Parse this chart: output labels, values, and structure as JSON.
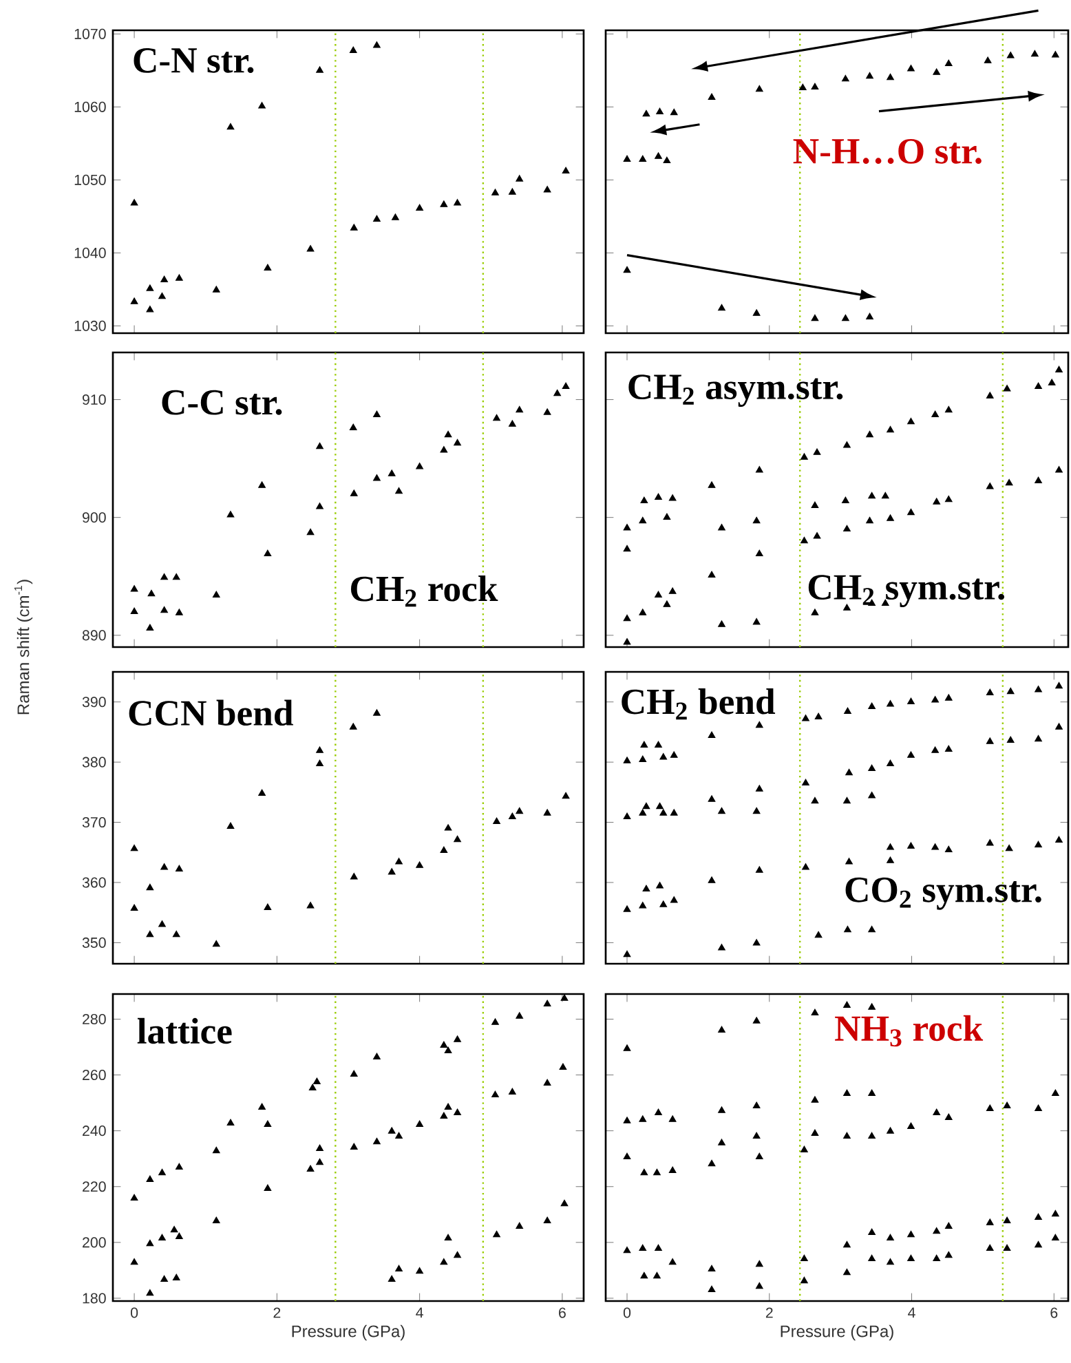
{
  "chart_data": [
    {
      "type": "scatter",
      "title": "C-N str.",
      "color": "#000000",
      "marker": "triangle",
      "tick_labels": "y",
      "xlim": [
        -0.3,
        6.3
      ],
      "ylim": [
        1029,
        1070.5
      ],
      "xticks": [
        0,
        2,
        4,
        6
      ],
      "yticks": [
        1030,
        1040,
        1050,
        1060,
        1070
      ],
      "ref_lines": [
        {
          "axis": "x",
          "value": 2.82,
          "color": "#99cc00",
          "line_style": "dotted"
        },
        {
          "axis": "x",
          "value": 4.89,
          "color": "#99cc00",
          "line_style": "dotted"
        }
      ],
      "x": [
        0,
        0,
        0.22,
        0.22,
        0.39,
        0.42,
        0.63,
        1.15,
        1.35,
        1.79,
        1.87,
        2.47,
        2.6,
        3.08,
        3.07,
        3.4,
        3.4,
        3.66,
        4.0,
        4.34,
        4.53,
        5.06,
        5.3,
        5.4,
        5.79,
        6.05
      ],
      "values": [
        1046.8,
        1033.3,
        1032.2,
        1035.1,
        1034.0,
        1036.3,
        1036.5,
        1034.9,
        1057.2,
        1060.1,
        1037.9,
        1040.5,
        1065.0,
        1043.4,
        1067.7,
        1068.4,
        1044.6,
        1044.8,
        1046.1,
        1046.6,
        1046.8,
        1048.2,
        1048.3,
        1050.1,
        1048.6,
        1051.2
      ]
    },
    {
      "type": "scatter",
      "title": "N-H…O str.",
      "color": "#000000",
      "marker": "triangle",
      "tick_labels": false,
      "xlim": [
        -0.3,
        6.2
      ],
      "ylim": [
        1029,
        1070.5
      ],
      "xticks": [
        0,
        2,
        4,
        6
      ],
      "yticks": [
        1030,
        1040,
        1050,
        1060,
        1070
      ],
      "ref_lines": [
        {
          "axis": "x",
          "value": 2.43,
          "color": "#99cc00",
          "line_style": "dotted"
        },
        {
          "axis": "x",
          "value": 5.28,
          "color": "#99cc00",
          "line_style": "dotted"
        }
      ],
      "x": [
        0,
        0,
        0.22,
        0.44,
        0.56,
        0.27,
        0.46,
        0.66,
        1.19,
        1.33,
        1.82,
        1.86,
        2.47,
        2.64,
        2.64,
        3.07,
        3.07,
        3.41,
        3.41,
        3.7,
        3.99,
        4.35,
        4.52,
        5.07,
        5.39,
        5.73,
        6.02
      ],
      "values": [
        1037.6,
        1052.8,
        1052.8,
        1053.2,
        1052.6,
        1059.0,
        1059.3,
        1059.2,
        1061.3,
        1032.4,
        1031.7,
        1062.4,
        1062.6,
        1062.7,
        1031.0,
        1031.0,
        1063.8,
        1064.2,
        1031.2,
        1064.0,
        1065.2,
        1064.7,
        1065.9,
        1066.3,
        1067.0,
        1067.2,
        1067.1
      ]
    },
    {
      "type": "scatter",
      "title": "C-C str.",
      "ylabel": "Raman shift (cm$^{-1}$)",
      "color": "#000000",
      "marker": "triangle",
      "tick_labels": "y",
      "xlim": [
        -0.3,
        6.3
      ],
      "ylim": [
        889,
        914
      ],
      "xticks": [
        0,
        2,
        4,
        6
      ],
      "yticks": [
        890,
        900,
        910
      ],
      "annotations": [
        "CH$_{2}$ rock"
      ],
      "ref_lines": [
        {
          "axis": "x",
          "value": 2.82,
          "color": "#99cc00",
          "line_style": "dotted"
        },
        {
          "axis": "x",
          "value": 4.89,
          "color": "#99cc00",
          "line_style": "dotted"
        }
      ],
      "x": [
        0,
        0,
        0.22,
        0.24,
        0.42,
        0.42,
        0.63,
        0.59,
        1.15,
        1.35,
        1.79,
        1.87,
        2.47,
        2.6,
        2.6,
        3.08,
        3.07,
        3.4,
        3.4,
        3.61,
        3.71,
        4.0,
        4.34,
        4.4,
        4.53,
        5.08,
        5.3,
        5.4,
        5.79,
        5.93,
        6.05
      ],
      "values": [
        893.9,
        892.0,
        890.6,
        893.5,
        892.1,
        894.9,
        891.9,
        894.9,
        893.4,
        900.2,
        902.7,
        896.9,
        898.7,
        906.0,
        900.9,
        902.0,
        907.6,
        908.7,
        903.3,
        903.7,
        902.2,
        904.3,
        905.7,
        907.0,
        906.3,
        908.4,
        907.9,
        909.1,
        908.9,
        910.5,
        911.1
      ]
    },
    {
      "type": "scatter",
      "title": "CH$_{2}$ asym.str.",
      "color": "#000000",
      "marker": "triangle",
      "tick_labels": false,
      "xlim": [
        -0.3,
        6.2
      ],
      "ylim": [
        889,
        914
      ],
      "xticks": [
        0,
        2,
        4,
        6
      ],
      "yticks": [
        890,
        900,
        910
      ],
      "annotations": [
        "CH$_{2}$ sym.str."
      ],
      "ref_lines": [
        {
          "axis": "x",
          "value": 2.43,
          "color": "#99cc00",
          "line_style": "dotted"
        },
        {
          "axis": "x",
          "value": 5.28,
          "color": "#99cc00",
          "line_style": "dotted"
        }
      ],
      "x": [
        0,
        0,
        0,
        0,
        0.22,
        0.24,
        0.44,
        0.44,
        0.56,
        0.64,
        0.22,
        0.56,
        0.64,
        1.19,
        1.19,
        1.33,
        1.33,
        1.82,
        1.86,
        1.86,
        1.82,
        2.49,
        2.67,
        2.49,
        2.67,
        2.64,
        2.64,
        3.09,
        3.09,
        3.07,
        3.09,
        3.41,
        3.7,
        3.44,
        3.63,
        3.44,
        3.63,
        3.7,
        3.41,
        3.99,
        3.99,
        4.33,
        4.52,
        4.35,
        4.52,
        5.1,
        5.34,
        5.1,
        5.37,
        5.78,
        5.97,
        6.07,
        5.78,
        6.07
      ],
      "values": [
        897.3,
        899.1,
        891.4,
        889.4,
        899.7,
        901.4,
        901.7,
        893.4,
        900.0,
        901.6,
        891.9,
        892.6,
        893.7,
        902.7,
        895.1,
        899.1,
        890.9,
        899.7,
        904.0,
        896.9,
        891.1,
        905.1,
        905.5,
        898.0,
        898.4,
        901.0,
        891.9,
        906.1,
        899.0,
        901.4,
        892.3,
        907.0,
        907.4,
        901.8,
        901.8,
        892.7,
        892.7,
        899.9,
        899.7,
        908.1,
        900.4,
        908.7,
        909.1,
        901.3,
        901.5,
        910.3,
        910.9,
        902.6,
        902.9,
        911.1,
        911.4,
        912.5,
        903.1,
        904.0
      ]
    },
    {
      "type": "scatter",
      "title": "CCN bend",
      "color": "#000000",
      "marker": "triangle",
      "tick_labels": "y",
      "xlim": [
        -0.3,
        6.3
      ],
      "ylim": [
        346.5,
        395
      ],
      "xticks": [
        0,
        2,
        4,
        6
      ],
      "yticks": [
        350,
        360,
        370,
        380,
        390
      ],
      "ref_lines": [
        {
          "axis": "x",
          "value": 2.82,
          "color": "#99cc00",
          "line_style": "dotted"
        },
        {
          "axis": "x",
          "value": 4.89,
          "color": "#99cc00",
          "line_style": "dotted"
        }
      ],
      "x": [
        0,
        0,
        0.22,
        0.22,
        0.39,
        0.42,
        0.59,
        0.63,
        1.15,
        1.35,
        1.79,
        1.87,
        2.47,
        2.6,
        2.6,
        3.07,
        3.08,
        3.4,
        3.61,
        3.71,
        4.0,
        4.34,
        4.4,
        4.53,
        5.08,
        5.3,
        5.4,
        5.79,
        6.05
      ],
      "values": [
        365.6,
        355.7,
        351.3,
        359.1,
        353.0,
        362.5,
        351.3,
        362.2,
        349.7,
        369.3,
        374.8,
        355.8,
        356.1,
        381.9,
        379.7,
        385.8,
        360.9,
        388.1,
        361.7,
        363.4,
        362.8,
        365.3,
        369.0,
        367.1,
        370.1,
        370.9,
        371.8,
        371.5,
        374.3
      ]
    },
    {
      "type": "scatter",
      "title": "CH$_{2}$ bend",
      "color": "#000000",
      "marker": "triangle",
      "tick_labels": false,
      "xlim": [
        -0.3,
        6.2
      ],
      "ylim": [
        346.5,
        395
      ],
      "xticks": [
        0,
        2,
        4,
        6
      ],
      "yticks": [
        350,
        360,
        370,
        380,
        390
      ],
      "annotations": [
        "CO$_{2}$ sym.str."
      ],
      "ref_lines": [
        {
          "axis": "x",
          "value": 2.43,
          "color": "#99cc00",
          "line_style": "dotted"
        },
        {
          "axis": "x",
          "value": 5.28,
          "color": "#99cc00",
          "line_style": "dotted"
        }
      ],
      "x": [
        0,
        0,
        0,
        0,
        0.22,
        0.24,
        0.44,
        0.51,
        0.66,
        0.22,
        0.27,
        0.46,
        0.51,
        0.66,
        0.22,
        0.27,
        0.46,
        0.51,
        0.66,
        1.19,
        1.19,
        1.33,
        1.19,
        1.33,
        1.86,
        1.86,
        1.82,
        1.86,
        1.82,
        2.51,
        2.69,
        2.51,
        2.64,
        2.51,
        2.69,
        3.1,
        3.12,
        3.09,
        3.12,
        3.1,
        3.44,
        3.7,
        3.44,
        3.7,
        3.44,
        3.7,
        3.7,
        3.44,
        3.99,
        3.99,
        3.99,
        4.33,
        4.52,
        4.33,
        4.52,
        4.33,
        4.52,
        5.1,
        5.39,
        5.1,
        5.39,
        5.1,
        5.37,
        5.78,
        6.07,
        5.78,
        6.07,
        5.78,
        6.07
      ],
      "values": [
        380.2,
        370.9,
        355.5,
        348.0,
        380.4,
        382.8,
        382.8,
        380.8,
        381.1,
        371.5,
        372.6,
        372.6,
        371.5,
        371.5,
        356.1,
        358.9,
        359.4,
        356.3,
        357.0,
        384.4,
        373.8,
        371.8,
        360.3,
        349.1,
        386.1,
        375.5,
        371.8,
        362.0,
        349.9,
        387.2,
        387.5,
        376.5,
        373.5,
        362.5,
        351.2,
        388.4,
        378.2,
        373.5,
        363.4,
        352.1,
        389.2,
        389.6,
        378.9,
        379.7,
        374.4,
        365.8,
        363.6,
        352.1,
        390.0,
        381.1,
        366.0,
        390.3,
        390.6,
        381.9,
        382.1,
        365.8,
        365.4,
        391.5,
        391.7,
        383.4,
        383.6,
        366.5,
        365.6,
        392.0,
        392.6,
        383.8,
        385.8,
        366.2,
        367.0
      ]
    },
    {
      "type": "scatter",
      "title": "lattice",
      "xlabel": "Pressure (GPa)",
      "color": "#000000",
      "marker": "triangle",
      "xlim": [
        -0.3,
        6.3
      ],
      "ylim": [
        179,
        289
      ],
      "xticks": [
        0,
        2,
        4,
        6
      ],
      "yticks": [
        180,
        200,
        220,
        240,
        260,
        280
      ],
      "ref_lines": [
        {
          "axis": "x",
          "value": 2.82,
          "color": "#99cc00",
          "line_style": "dotted"
        },
        {
          "axis": "x",
          "value": 4.89,
          "color": "#99cc00",
          "line_style": "dotted"
        }
      ],
      "x": [
        0,
        0,
        0.22,
        0.22,
        0.22,
        0.39,
        0.39,
        0.42,
        0.56,
        0.59,
        0.63,
        0.63,
        1.15,
        1.15,
        1.35,
        1.79,
        1.87,
        1.87,
        2.47,
        2.5,
        2.56,
        2.6,
        2.6,
        3.08,
        3.08,
        3.4,
        3.4,
        3.61,
        3.71,
        3.61,
        3.71,
        4.0,
        4.0,
        4.34,
        4.34,
        4.4,
        4.53,
        4.34,
        4.4,
        4.53,
        4.4,
        4.53,
        5.06,
        5.06,
        5.08,
        5.4,
        5.3,
        5.4,
        5.79,
        5.79,
        5.79,
        6.03,
        6.01,
        6.03
      ],
      "values": [
        215.8,
        192.8,
        181.7,
        222.5,
        199.5,
        201.5,
        224.9,
        186.7,
        204.4,
        187.2,
        226.9,
        202.0,
        207.7,
        232.8,
        242.7,
        248.4,
        242.2,
        219.3,
        226.2,
        255.3,
        257.5,
        233.6,
        228.6,
        260.2,
        234.1,
        266.4,
        236.0,
        239.8,
        238.0,
        186.7,
        190.4,
        242.2,
        189.6,
        192.8,
        245.2,
        201.5,
        195.3,
        270.6,
        268.6,
        272.6,
        248.4,
        246.4,
        278.8,
        252.8,
        202.7,
        281.0,
        253.8,
        205.7,
        285.4,
        257.0,
        207.7,
        287.4,
        262.7,
        213.8
      ]
    },
    {
      "type": "scatter",
      "title": "NH$_{3}$ rock",
      "xlabel": "Pressure (GPa)",
      "color": "#000000",
      "marker": "triangle",
      "tick_labels": "x",
      "xlim": [
        -0.3,
        6.2
      ],
      "ylim": [
        179,
        289
      ],
      "xticks": [
        0,
        2,
        4,
        6
      ],
      "yticks": [
        180,
        200,
        220,
        240,
        260,
        280
      ],
      "ref_lines": [
        {
          "axis": "x",
          "value": 2.43,
          "color": "#99cc00",
          "line_style": "dotted"
        },
        {
          "axis": "x",
          "value": 5.28,
          "color": "#99cc00",
          "line_style": "dotted"
        }
      ],
      "x": [
        0,
        0,
        0,
        0,
        0.22,
        0.24,
        0.42,
        0.44,
        0.64,
        0.64,
        0.22,
        0.44,
        0.64,
        0.24,
        0.42,
        1.19,
        1.19,
        1.19,
        1.33,
        1.33,
        1.33,
        1.82,
        1.82,
        1.82,
        1.86,
        1.86,
        1.86,
        2.49,
        2.49,
        2.49,
        2.64,
        2.64,
        2.64,
        3.09,
        3.09,
        3.09,
        3.09,
        3.09,
        3.44,
        3.44,
        3.44,
        3.44,
        3.44,
        3.7,
        3.7,
        3.7,
        3.99,
        3.99,
        3.99,
        4.35,
        4.52,
        4.35,
        4.52,
        4.35,
        4.52,
        5.1,
        5.34,
        5.1,
        5.34,
        5.1,
        5.34,
        5.78,
        6.02,
        5.78,
        6.02,
        5.78,
        6.02
      ],
      "values": [
        269.4,
        243.5,
        230.6,
        197.0,
        244.0,
        224.9,
        224.9,
        246.4,
        225.7,
        244.0,
        197.8,
        197.8,
        192.8,
        187.9,
        187.9,
        228.1,
        190.4,
        183.0,
        276.0,
        247.2,
        235.6,
        279.3,
        248.9,
        238.0,
        230.6,
        192.1,
        184.2,
        233.1,
        194.1,
        186.2,
        282.2,
        250.9,
        239.0,
        284.9,
        253.3,
        238.0,
        199.0,
        189.1,
        284.2,
        253.3,
        238.0,
        203.5,
        194.1,
        239.8,
        201.5,
        192.8,
        241.5,
        202.7,
        194.1,
        246.4,
        244.7,
        203.9,
        205.7,
        194.1,
        195.3,
        247.9,
        248.9,
        207.0,
        207.7,
        197.8,
        197.8,
        247.9,
        253.3,
        208.9,
        210.1,
        199.0,
        201.5
      ]
    }
  ]
}
